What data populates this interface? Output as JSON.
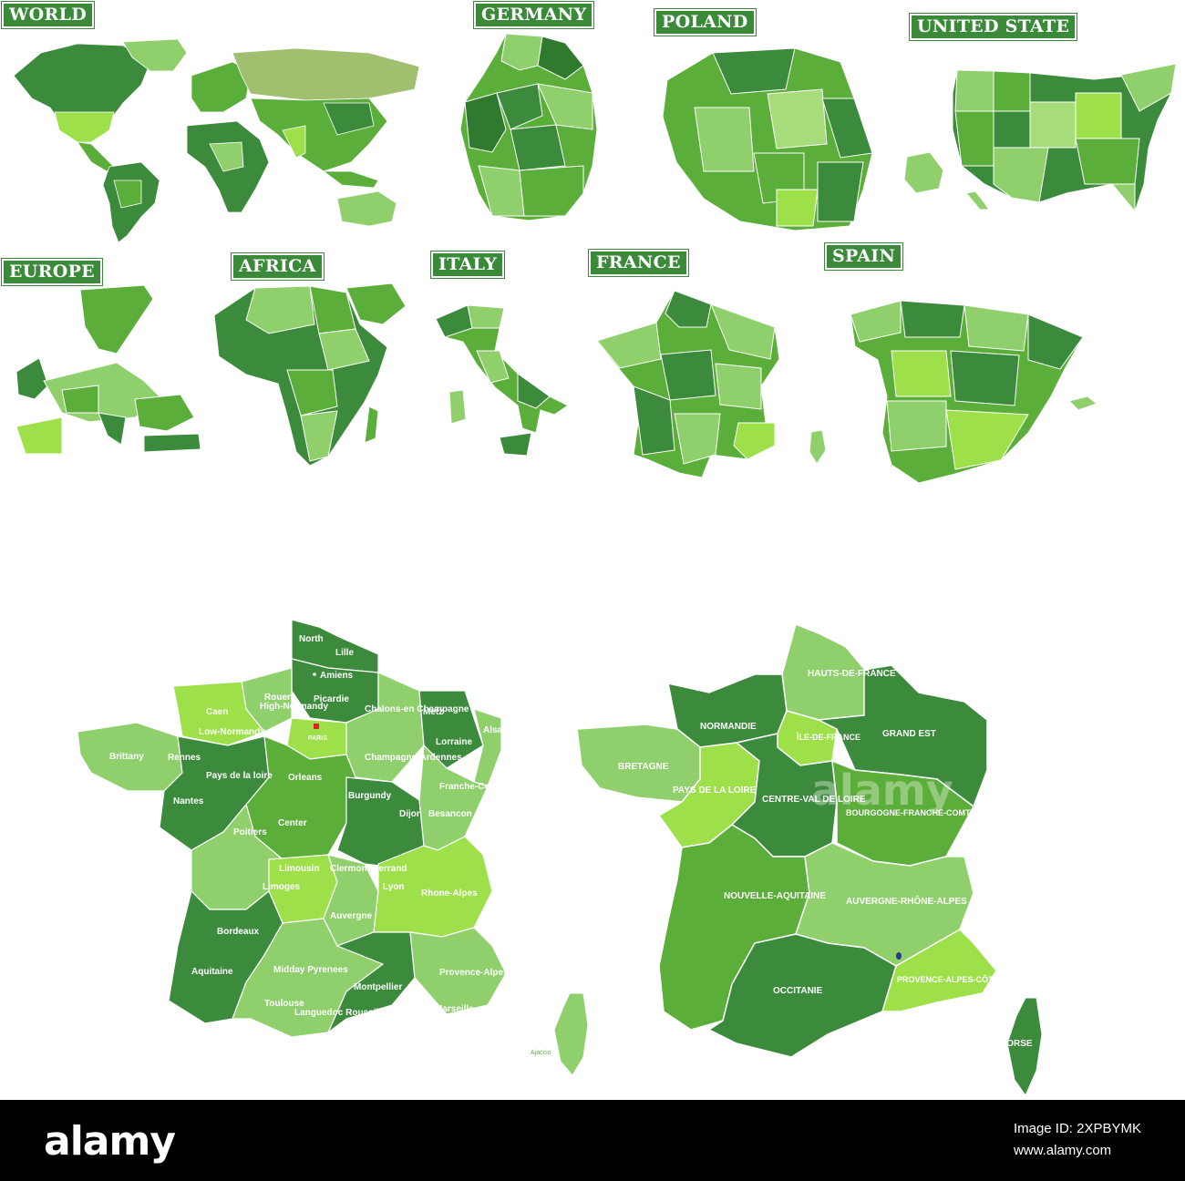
{
  "titles": {
    "world": "WORLD",
    "germany": "GERMANY",
    "poland": "POLAND",
    "usa": "UNITED STATE",
    "europe": "EUROPE",
    "africa": "AFRICA",
    "italy": "ITALY",
    "france": "FRANCE",
    "spain": "SPAIN"
  },
  "colors": {
    "title_bg": "#3a8a3a",
    "dark": "#3c8a3c",
    "darker": "#2f7a2f",
    "mid": "#5cae3a",
    "light": "#8fd06c",
    "pale": "#a7dc7a",
    "lime": "#9ee04a"
  },
  "france_old": {
    "regions": [
      "North",
      "Picardie",
      "High-Normandy",
      "Low-Normandy",
      "Brittany",
      "Pays de la loire",
      "Center",
      "Chalons-en Champagne",
      "Champagne-Ardennes",
      "Lorraine",
      "Alsace",
      "Franche-Comte",
      "Burgundy",
      "Limousin",
      "Auvergne",
      "Rhone-Alpes",
      "Aquitaine",
      "Midday Pyrenees",
      "Provence-Alpes Cote d'Azur",
      "Languedoc Roussillon",
      "Poitiers"
    ],
    "cities": [
      "Lille",
      "Amiens",
      "Rouen",
      "Caen",
      "PARIS",
      "Metz",
      "Rennes",
      "Orleans",
      "Nantes",
      "Dijon",
      "Besancon",
      "Clermont-Ferrand",
      "Limoges",
      "Lyon",
      "Bordeaux",
      "Toulouse",
      "Montpellier",
      "Marseille",
      "Ajaccio"
    ]
  },
  "france_new": {
    "regions": [
      "HAUTS-DE-FRANCE",
      "NORMANDIE",
      "ÎLE-DE-FRANCE",
      "GRAND EST",
      "BRETAGNE",
      "PAYS DE LA LOIRE",
      "CENTRE-VAL DE LOIRE",
      "BOURGOGNE-FRANCHE-COMTÉ",
      "NOUVELLE-AQUITAINE",
      "AUVERGNE-RHÔNE-ALPES",
      "OCCITANIE",
      "PROVENCE-ALPES-CÔTE D'AZUR",
      "CORSE"
    ]
  },
  "stock": {
    "brand": "alamy",
    "image_id_label": "Image ID: 2XPBYMK",
    "site": "www.alamy.com"
  }
}
